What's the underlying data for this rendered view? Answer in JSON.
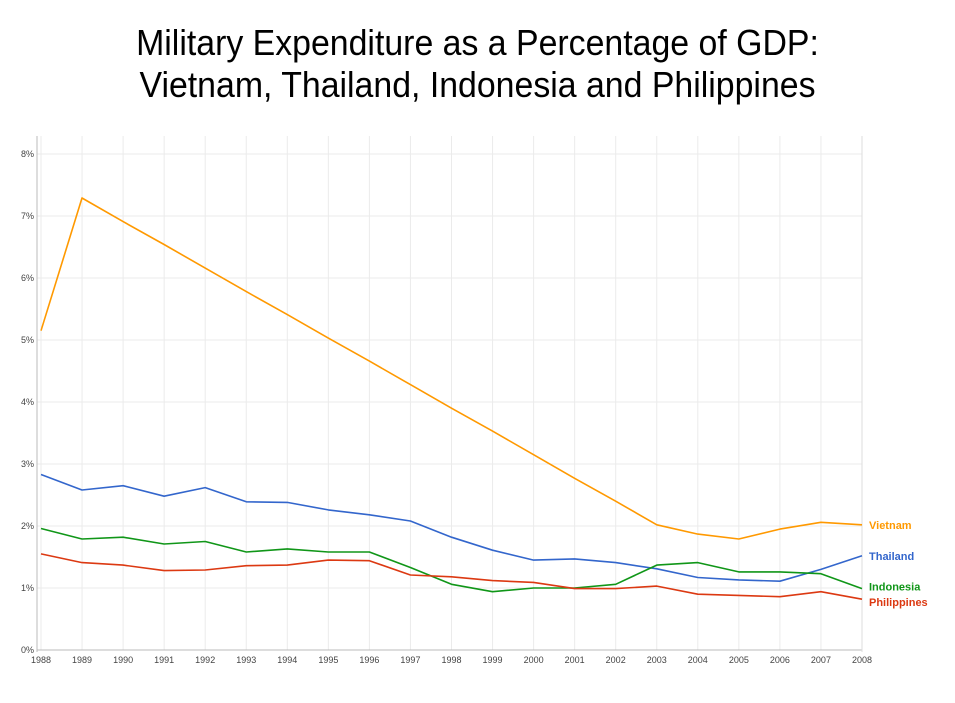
{
  "chart_data": {
    "type": "line",
    "title": "Military Expenditure as a Percentage of GDP:",
    "subtitle": "Vietnam, Thailand, Indonesia and Philippines",
    "xlabel": "",
    "ylabel": "",
    "x": [
      "1988",
      "1989",
      "1990",
      "1991",
      "1992",
      "1993",
      "1994",
      "1995",
      "1996",
      "1997",
      "1998",
      "1999",
      "2000",
      "2001",
      "2002",
      "2003",
      "2004",
      "2005",
      "2006",
      "2007",
      "2008"
    ],
    "ylim": [
      0,
      8
    ],
    "yticks": [
      0,
      1,
      2,
      3,
      4,
      5,
      6,
      7,
      8
    ],
    "ytick_labels": [
      "0%",
      "1%",
      "2%",
      "3%",
      "4%",
      "5%",
      "6%",
      "7%",
      "8%"
    ],
    "grid": true,
    "legend": "inline-right",
    "series": [
      {
        "name": "Vietnam",
        "color": "#ff9900",
        "values": [
          5.15,
          7.29,
          6.91,
          6.54,
          6.16,
          5.78,
          5.41,
          5.03,
          4.66,
          4.28,
          3.9,
          3.53,
          3.15,
          2.77,
          2.4,
          2.02,
          1.87,
          1.79,
          1.95,
          2.06,
          2.02
        ]
      },
      {
        "name": "Thailand",
        "color": "#3366cc",
        "values": [
          2.83,
          2.58,
          2.65,
          2.48,
          2.62,
          2.39,
          2.38,
          2.26,
          2.18,
          2.08,
          1.82,
          1.61,
          1.45,
          1.47,
          1.41,
          1.31,
          1.17,
          1.13,
          1.11,
          1.3,
          1.52
        ]
      },
      {
        "name": "Indonesia",
        "color": "#109618",
        "values": [
          1.96,
          1.79,
          1.82,
          1.71,
          1.75,
          1.58,
          1.63,
          1.58,
          1.58,
          1.33,
          1.06,
          0.94,
          1.0,
          1.0,
          1.06,
          1.37,
          1.41,
          1.26,
          1.26,
          1.23,
          0.99
        ]
      },
      {
        "name": "Philippines",
        "color": "#dc3912",
        "values": [
          1.55,
          1.41,
          1.37,
          1.28,
          1.29,
          1.36,
          1.37,
          1.45,
          1.44,
          1.21,
          1.18,
          1.12,
          1.09,
          0.99,
          0.99,
          1.03,
          0.9,
          0.88,
          0.86,
          0.94,
          0.82
        ]
      }
    ]
  }
}
